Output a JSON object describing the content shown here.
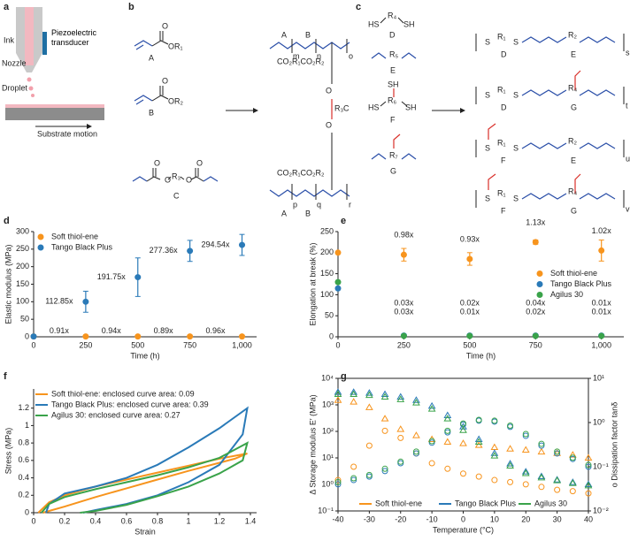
{
  "figure": {
    "panel_a": {
      "letter": "a",
      "ink": "Ink",
      "nozzle": "Nozzle",
      "transducer": "Piezoelectric transducer",
      "droplet": "Droplet",
      "substrate": "Substrate motion"
    },
    "panel_b": {
      "letter": "b",
      "oxygen": "O",
      "monomers": [
        {
          "label": "A",
          "group": "OR₁"
        },
        {
          "label": "B",
          "group": "OR₂"
        },
        {
          "label": "C",
          "group": "R₃"
        }
      ],
      "polymer": {
        "ester": "CO₂R₁CO₂R₂",
        "subscripts": [
          "m",
          "n",
          "o",
          "p",
          "q",
          "r"
        ],
        "crosslinker": "R₃",
        "labels": [
          "A",
          "B",
          "C",
          "A",
          "B"
        ]
      }
    },
    "panel_c": {
      "letter": "c",
      "reagents": [
        {
          "label": "D",
          "texts": [
            "HS",
            "R₄",
            "SH"
          ]
        },
        {
          "label": "E",
          "texts": [
            "R₅"
          ]
        },
        {
          "label": "F",
          "texts": [
            "HS",
            "R₆",
            "SH",
            "SH"
          ]
        },
        {
          "label": "G",
          "texts": [
            "R₇"
          ]
        }
      ],
      "products": [
        {
          "texts": [
            "S",
            "R₁",
            "S",
            "R₂",
            "s"
          ],
          "labels": [
            "D",
            "E"
          ]
        },
        {
          "texts": [
            "S",
            "R₁",
            "S",
            "R₄",
            "t"
          ],
          "labels": [
            "D",
            "G"
          ]
        },
        {
          "texts": [
            "S",
            "R₁",
            "S",
            "R₂",
            "u"
          ],
          "labels": [
            "F",
            "E"
          ]
        },
        {
          "texts": [
            "S",
            "R₁",
            "S",
            "R₄",
            "v"
          ],
          "labels": [
            "F",
            "G"
          ]
        }
      ]
    },
    "letters": [
      "d",
      "e",
      "f",
      "g"
    ]
  },
  "chart_data": [
    {
      "type": "scatter",
      "x_label": "Time (h)",
      "y_label": "Elastic modulus (MPa)",
      "legend": "upper left",
      "x": [
        0,
        250,
        500,
        750,
        1000
      ],
      "xlim": [
        0,
        1070
      ],
      "xticks": [
        0,
        250,
        500,
        750,
        {
          "value": 1000,
          "label": "1,000"
        }
      ],
      "ylim": [
        0,
        300
      ],
      "yticks": [
        0,
        50,
        100,
        150,
        200,
        250,
        300
      ],
      "series": [
        {
          "name": "Soft thiol-ene",
          "color": "#f7941d",
          "values": [
            1,
            1,
            1,
            1,
            1
          ],
          "errors": [
            0,
            0.2,
            0.2,
            0.2,
            0.2
          ],
          "point_labels": [
            null,
            "0.91x",
            "0.94x",
            "0.89x",
            "0.96x"
          ]
        },
        {
          "name": "Tango Black Plus",
          "color": "#2a7ab8",
          "values": [
            1,
            100,
            170,
            245,
            262
          ],
          "errors": [
            0,
            30,
            55,
            30,
            30
          ],
          "point_labels": [
            null,
            "112.85x",
            "191.75x",
            "277.36x",
            "294.54x"
          ]
        }
      ]
    },
    {
      "type": "scatter",
      "x_label": "Time (h)",
      "y_label": "Elongation at break (%)",
      "legend": "center right",
      "x": [
        0,
        250,
        500,
        750,
        1000
      ],
      "xlim": [
        0,
        1085
      ],
      "xticks": [
        0,
        250,
        500,
        750,
        {
          "value": 1000,
          "label": "1,000"
        }
      ],
      "ylim": [
        0,
        250
      ],
      "yticks": [
        0,
        50,
        100,
        150,
        200,
        250
      ],
      "series": [
        {
          "name": "Soft thiol-ene",
          "color": "#f7941d",
          "values": [
            200,
            195,
            185,
            225,
            205
          ],
          "errors": [
            0,
            15,
            15,
            5,
            25
          ],
          "point_labels": [
            null,
            "0.98x",
            "0.93x",
            "1.13x",
            "1.02x"
          ]
        },
        {
          "name": "Tango Black Plus",
          "color": "#2a7ab8",
          "values": [
            115,
            3,
            3,
            3,
            3
          ],
          "errors": [
            0,
            1,
            1,
            1,
            1
          ],
          "point_labels": [
            null,
            "0.03x",
            "0.02x",
            "0.04x",
            "0.01x"
          ]
        },
        {
          "name": "Agilus 30",
          "color": "#3aa34a",
          "values": [
            130,
            2,
            2,
            2,
            2
          ],
          "errors": [
            0,
            1,
            1,
            1,
            1
          ],
          "point_labels": [
            null,
            "0.03x",
            "0.01x",
            "0.02x",
            "0.01x"
          ]
        }
      ]
    },
    {
      "type": "line",
      "x_label": "Strain",
      "y_label": "Stress (MPa)",
      "legend": "upper left",
      "xlim": [
        0,
        1.44
      ],
      "xticks": [
        0,
        0.2,
        0.4,
        0.6,
        0.8,
        1.0,
        1.2,
        1.4
      ],
      "ylim": [
        0,
        1.42
      ],
      "yticks": [
        0,
        0.2,
        0.4,
        0.6,
        0.8,
        1.0,
        1.2
      ],
      "series": [
        {
          "name": "Soft thiol-ene: enclosed curve area: 0.09",
          "color": "#f7941d",
          "x": [
            0.03,
            0.1,
            0.2,
            0.4,
            0.6,
            0.8,
            1.0,
            1.2,
            1.38,
            1.3,
            1.0,
            0.8,
            0.6,
            0.4,
            0.2,
            0.1,
            0.06
          ],
          "values": [
            0,
            0.12,
            0.2,
            0.3,
            0.38,
            0.46,
            0.54,
            0.62,
            0.68,
            0.62,
            0.48,
            0.38,
            0.28,
            0.18,
            0.07,
            0.02,
            0
          ]
        },
        {
          "name": "Tango Black Plus: enclosed curve area: 0.39",
          "color": "#2a7ab8",
          "x": [
            0.08,
            0.1,
            0.2,
            0.4,
            0.6,
            0.8,
            1.0,
            1.2,
            1.38,
            1.35,
            1.2,
            1.0,
            0.8,
            0.6,
            0.4,
            0.32
          ],
          "values": [
            0,
            0.1,
            0.22,
            0.3,
            0.4,
            0.55,
            0.75,
            0.97,
            1.2,
            0.9,
            0.55,
            0.35,
            0.2,
            0.1,
            0.03,
            0
          ]
        },
        {
          "name": "Agilus 30: enclosed curve area: 0.27",
          "color": "#3aa34a",
          "x": [
            0.05,
            0.1,
            0.2,
            0.4,
            0.6,
            0.8,
            1.0,
            1.2,
            1.38,
            1.35,
            1.2,
            1.0,
            0.8,
            0.6,
            0.4,
            0.3
          ],
          "values": [
            0,
            0.1,
            0.18,
            0.27,
            0.35,
            0.43,
            0.52,
            0.63,
            0.8,
            0.6,
            0.45,
            0.3,
            0.19,
            0.09,
            0.02,
            0
          ]
        }
      ]
    },
    {
      "type": "dma",
      "x_label": "Temperature (°C)",
      "y_label": "Δ Storage modulus E′ (MPa)",
      "y2_label": "o Dissipation factor tanδ",
      "legend": "lower center",
      "ylog": true,
      "y2log": true,
      "x": [
        -40,
        -35,
        -30,
        -25,
        -20,
        -15,
        -10,
        -5,
        0,
        5,
        10,
        15,
        20,
        25,
        30,
        35,
        40
      ],
      "xlim": [
        -40,
        40
      ],
      "xticks": [
        -40,
        -30,
        -20,
        -10,
        0,
        10,
        20,
        30,
        40
      ],
      "ylim": [
        0.1,
        10000
      ],
      "yticks": [
        {
          "value": 0.1,
          "label": "10⁻¹"
        },
        {
          "value": 1,
          "label": "10⁰"
        },
        {
          "value": 10,
          "label": "10¹"
        },
        {
          "value": 100,
          "label": "10²"
        },
        {
          "value": 1000,
          "label": "10³"
        },
        {
          "value": 10000,
          "label": "10⁴"
        }
      ],
      "y2lim": [
        0.01,
        10
      ],
      "y2ticks": [
        {
          "value": 0.01,
          "label": "10⁻²"
        },
        {
          "value": 0.1,
          "label": "10⁻¹"
        },
        {
          "value": 1,
          "label": "10⁰"
        },
        {
          "value": 10,
          "label": "10¹"
        }
      ],
      "series": [
        {
          "name": "Soft thiol-ene",
          "color": "#f7941d",
          "values": [
            1500,
            1300,
            800,
            300,
            120,
            70,
            50,
            40,
            35,
            30,
            25,
            22,
            20,
            17,
            15,
            13,
            10
          ],
          "tan_delta": [
            0.05,
            0.1,
            0.3,
            0.65,
            0.45,
            0.2,
            0.12,
            0.09,
            0.07,
            0.06,
            0.05,
            0.045,
            0.04,
            0.035,
            0.03,
            0.028,
            0.025
          ]
        },
        {
          "name": "Tango Black Plus",
          "color": "#2a7ab8",
          "values": [
            3000,
            3000,
            2800,
            2500,
            2000,
            1500,
            900,
            400,
            150,
            50,
            15,
            6,
            3,
            2,
            1.5,
            1.2,
            1
          ],
          "tan_delta": [
            0.04,
            0.05,
            0.06,
            0.08,
            0.12,
            0.2,
            0.35,
            0.6,
            0.9,
            1.1,
            1.05,
            0.8,
            0.5,
            0.3,
            0.2,
            0.15,
            0.1
          ]
        },
        {
          "name": "Agilus 30",
          "color": "#3aa34a",
          "values": [
            2500,
            2500,
            2300,
            2000,
            1600,
            1200,
            700,
            300,
            110,
            40,
            12,
            5,
            2.6,
            1.8,
            1.4,
            1.1,
            0.9
          ],
          "tan_delta": [
            0.045,
            0.055,
            0.065,
            0.09,
            0.13,
            0.22,
            0.38,
            0.65,
            0.95,
            1.15,
            1.1,
            0.85,
            0.55,
            0.33,
            0.22,
            0.16,
            0.11
          ]
        }
      ]
    }
  ]
}
